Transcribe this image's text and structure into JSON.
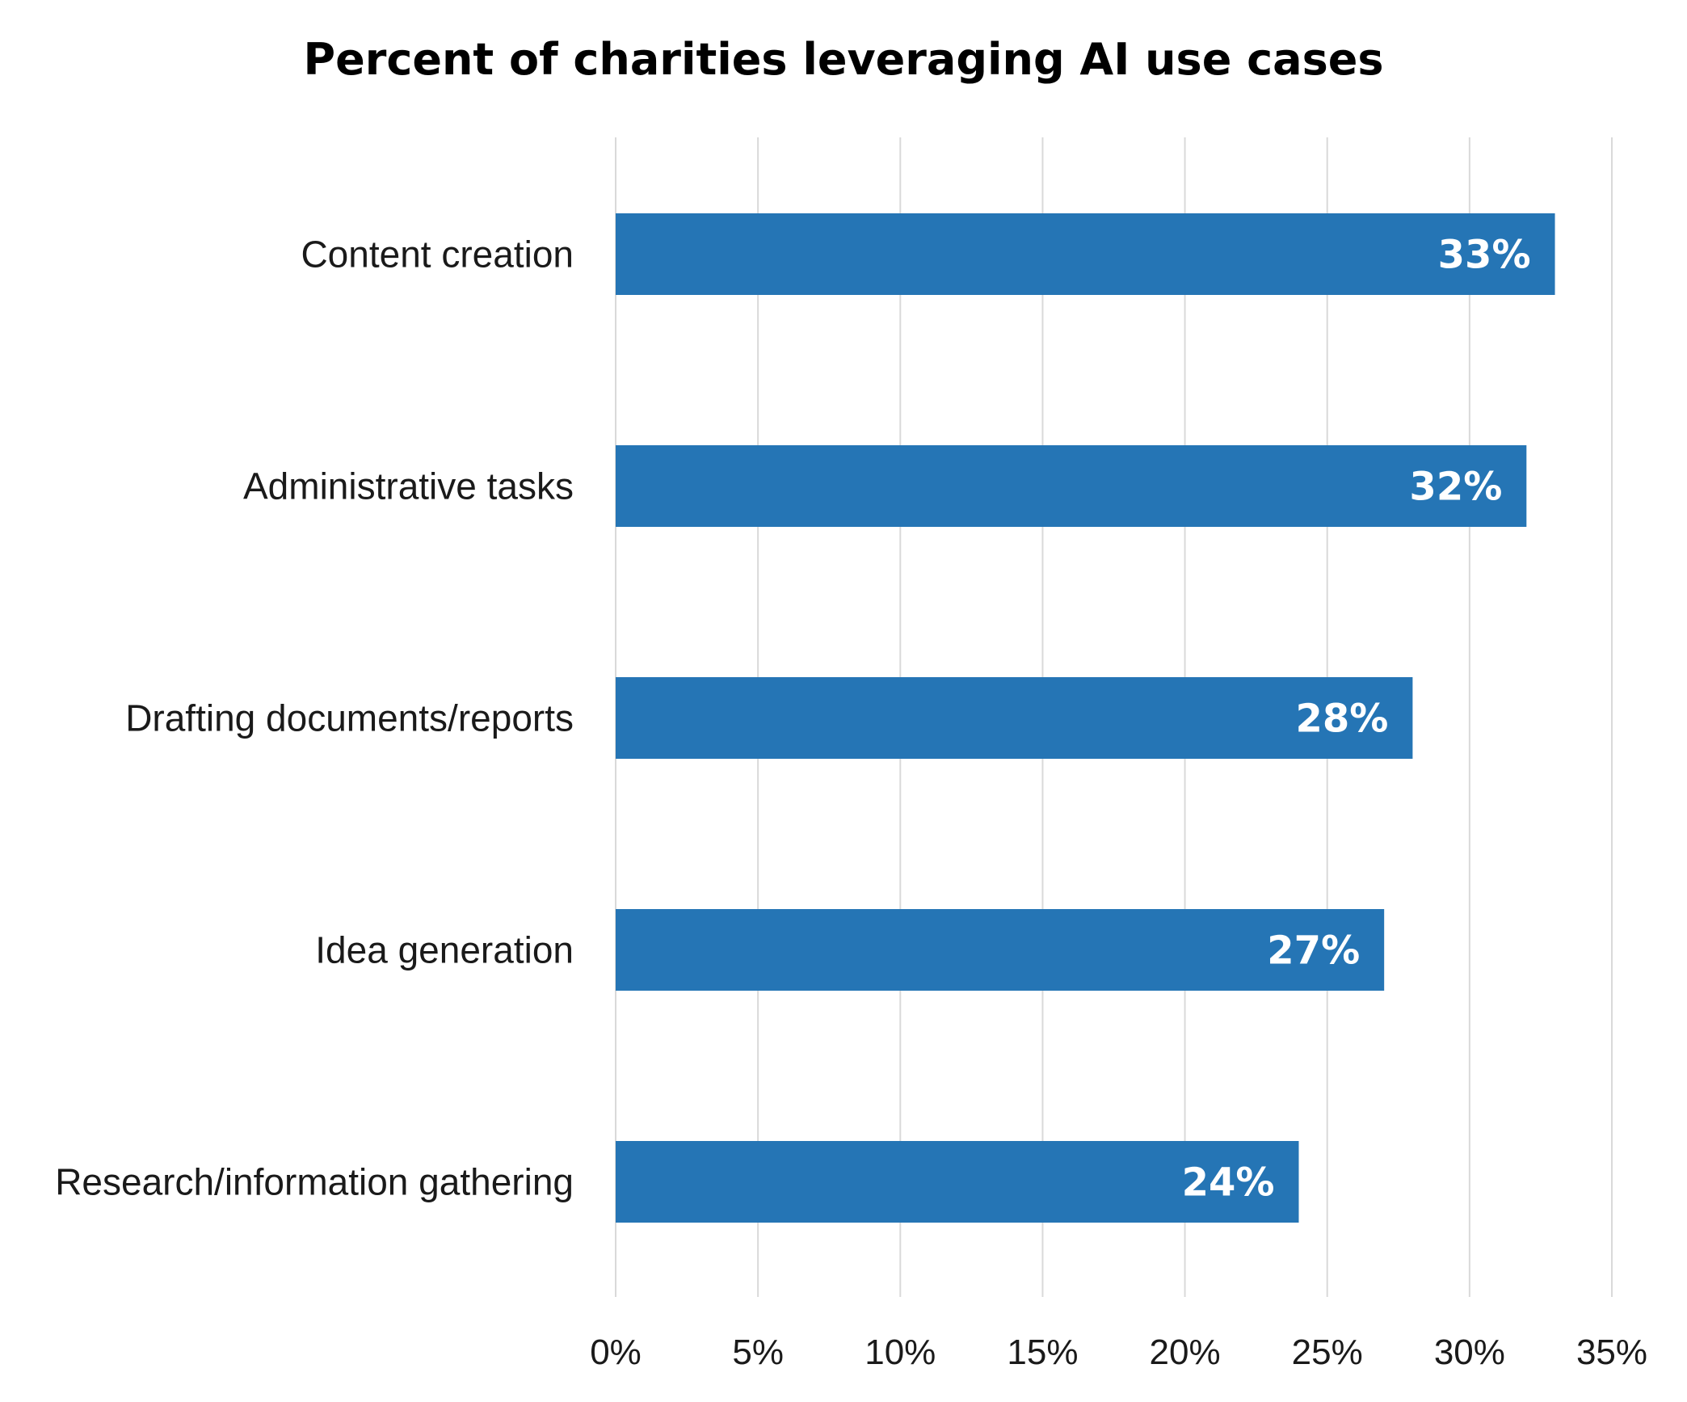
{
  "chart_data": {
    "type": "bar",
    "orientation": "horizontal",
    "title": "Percent of charities leveraging AI use cases",
    "categories": [
      "Content creation",
      "Administrative tasks",
      "Drafting documents/reports",
      "Idea generation",
      "Research/information gathering"
    ],
    "values": [
      33,
      32,
      28,
      27,
      24
    ],
    "value_labels": [
      "33%",
      "32%",
      "28%",
      "27%",
      "24%"
    ],
    "x_ticks": [
      0,
      5,
      10,
      15,
      20,
      25,
      30,
      35
    ],
    "x_tick_labels": [
      "0%",
      "5%",
      "10%",
      "15%",
      "20%",
      "25%",
      "30%",
      "35%"
    ],
    "xlim": [
      0,
      35
    ],
    "xlabel": "",
    "ylabel": "",
    "grid": "vertical",
    "legend": "none",
    "bar_color": "#2575b5",
    "grid_color": "#d9d9d9"
  }
}
